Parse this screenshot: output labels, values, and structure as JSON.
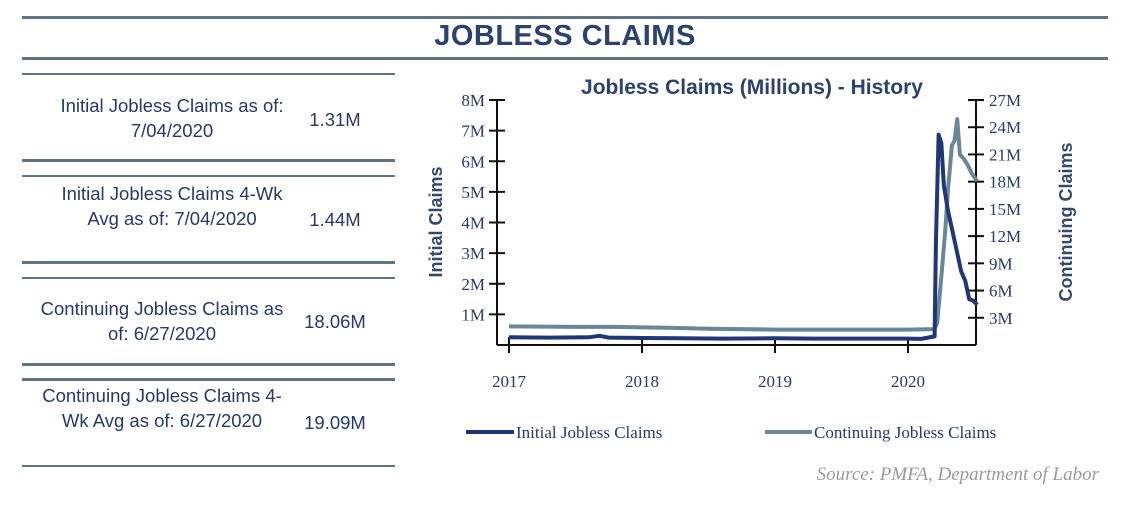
{
  "header": {
    "title": "JOBLESS CLAIMS"
  },
  "stats": [
    {
      "label": "Initial Jobless Claims as of: 7/04/2020",
      "value": "1.31M"
    },
    {
      "label": "Initial Jobless Claims 4-Wk Avg as of: 7/04/2020",
      "value": "1.44M"
    },
    {
      "label": "Continuing Jobless Claims as of: 6/27/2020",
      "value": "18.06M"
    },
    {
      "label": "Continuing Jobless Claims 4-Wk Avg as of: 6/27/2020",
      "value": "19.09M"
    }
  ],
  "source": "Source:  PMFA,  Department of Labor",
  "chart_data": {
    "type": "line",
    "title": "Jobless Claims (Millions) - History",
    "ylabel": "Initial Claims",
    "y2label": "Continuing  Claims",
    "xlim": [
      2016.9,
      2020.52
    ],
    "ylim": [
      0,
      8
    ],
    "y2lim": [
      0,
      27
    ],
    "xticks": [
      "2017",
      "2018",
      "2019",
      "2020"
    ],
    "yticks": [
      "1M",
      "2M",
      "3M",
      "4M",
      "5M",
      "6M",
      "7M",
      "8M"
    ],
    "y2ticks": [
      "3M",
      "6M",
      "9M",
      "12M",
      "15M",
      "18M",
      "21M",
      "24M",
      "27M"
    ],
    "grid": false,
    "legend": "bottom",
    "colors": {
      "initial": "#1f3677",
      "continuing": "#6a8799"
    },
    "series": [
      {
        "name": "Initial Jobless Claims",
        "axis": "left",
        "x": [
          2017.0,
          2017.3,
          2017.6,
          2017.68,
          2017.75,
          2018.0,
          2018.3,
          2018.6,
          2019.0,
          2019.3,
          2019.6,
          2020.0,
          2020.1,
          2020.2,
          2020.21,
          2020.23,
          2020.25,
          2020.27,
          2020.3,
          2020.33,
          2020.36,
          2020.4,
          2020.43,
          2020.46,
          2020.49,
          2020.52
        ],
        "values": [
          0.25,
          0.24,
          0.25,
          0.3,
          0.24,
          0.23,
          0.22,
          0.21,
          0.22,
          0.21,
          0.21,
          0.21,
          0.2,
          0.28,
          3.3,
          6.87,
          6.6,
          5.2,
          4.4,
          3.8,
          3.2,
          2.4,
          2.1,
          1.5,
          1.45,
          1.31
        ]
      },
      {
        "name": "Continuing Jobless Claims",
        "axis": "right",
        "x": [
          2017.0,
          2017.5,
          2017.8,
          2018.2,
          2018.5,
          2019.0,
          2019.5,
          2020.0,
          2020.2,
          2020.22,
          2020.25,
          2020.28,
          2020.3,
          2020.33,
          2020.35,
          2020.37,
          2020.39,
          2020.42,
          2020.45,
          2020.48,
          2020.52
        ],
        "values": [
          2.05,
          2.0,
          2.0,
          1.9,
          1.8,
          1.7,
          1.7,
          1.7,
          1.75,
          2.5,
          7.5,
          12.5,
          17,
          22,
          22.5,
          24.9,
          21,
          20.5,
          19.8,
          18.9,
          18.06
        ]
      }
    ]
  }
}
